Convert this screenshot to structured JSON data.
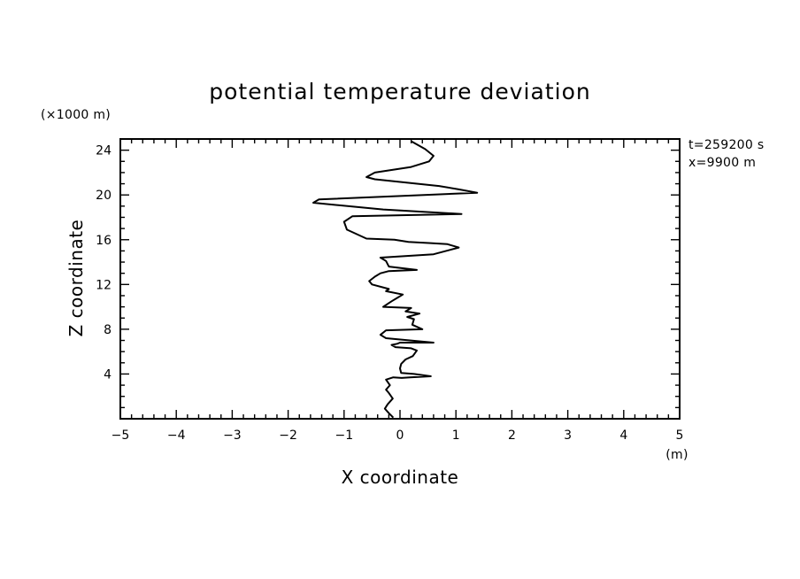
{
  "chart_data": {
    "type": "line",
    "title": "potential temperature deviation",
    "xlabel": "X coordinate",
    "ylabel": "Z coordinate",
    "x_unit": "(m)",
    "y_unit": "(×1000 m)",
    "annotations": [
      "t=259200 s",
      "x=9900 m"
    ],
    "xlim": [
      -5,
      5
    ],
    "ylim": [
      0,
      25
    ],
    "x_ticks": [
      -5,
      -4,
      -3,
      -2,
      -1,
      0,
      1,
      2,
      3,
      4,
      5
    ],
    "x_tick_labels": [
      "−5",
      "−4",
      "−3",
      "−2",
      "−1",
      "0",
      "1",
      "2",
      "3",
      "4",
      "5"
    ],
    "y_ticks": [
      4,
      8,
      12,
      16,
      20,
      24
    ],
    "y_tick_labels": [
      "4",
      "8",
      "12",
      "16",
      "20",
      "24"
    ],
    "grid": false,
    "series": [
      {
        "x": [
          -0.12,
          -0.2,
          -0.27,
          -0.22,
          -0.13,
          -0.2,
          -0.25,
          -0.18,
          -0.25,
          -0.12,
          0.03,
          0.18,
          0.55,
          0.25,
          0.02,
          0.0,
          0.02,
          0.1,
          0.23,
          0.3,
          0.2,
          -0.08,
          -0.15,
          -0.05,
          0.0,
          0.6,
          -0.25,
          -0.35,
          -0.25,
          0.4,
          0.22,
          0.25,
          0.13,
          0.35,
          0.1,
          0.2,
          -0.3,
          -0.15,
          -0.05,
          0.05,
          -0.25,
          -0.2,
          -0.5,
          -0.55,
          -0.45,
          -0.35,
          -0.2,
          0.3,
          -0.2,
          -0.25,
          -0.35,
          0.6,
          1.05,
          0.85,
          0.55,
          0.15,
          -0.1,
          -0.6,
          -0.95,
          -1.0,
          -0.85,
          1.1,
          -0.3,
          -1.55,
          -1.45,
          1.38,
          1.05,
          0.7,
          -0.45,
          -0.6,
          -0.45,
          0.2,
          0.52,
          0.6,
          0.45,
          0.2
        ],
        "y": [
          0.1,
          0.5,
          0.9,
          1.3,
          1.8,
          2.3,
          2.6,
          3.0,
          3.5,
          3.7,
          3.65,
          3.7,
          3.8,
          4.0,
          4.1,
          4.5,
          4.9,
          5.3,
          5.6,
          6.1,
          6.3,
          6.4,
          6.6,
          6.7,
          6.8,
          6.8,
          7.2,
          7.5,
          7.9,
          8.0,
          8.4,
          8.9,
          9.1,
          9.4,
          9.6,
          9.9,
          10.0,
          10.5,
          10.8,
          11.1,
          11.4,
          11.6,
          12.0,
          12.3,
          12.7,
          13.0,
          13.2,
          13.3,
          13.6,
          14.1,
          14.4,
          14.7,
          15.3,
          15.6,
          15.7,
          15.8,
          16.0,
          16.1,
          16.9,
          17.6,
          18.1,
          18.3,
          18.7,
          19.3,
          19.6,
          20.2,
          20.5,
          20.8,
          21.4,
          21.6,
          22.0,
          22.5,
          23.0,
          23.5,
          24.1,
          24.8
        ]
      }
    ]
  }
}
